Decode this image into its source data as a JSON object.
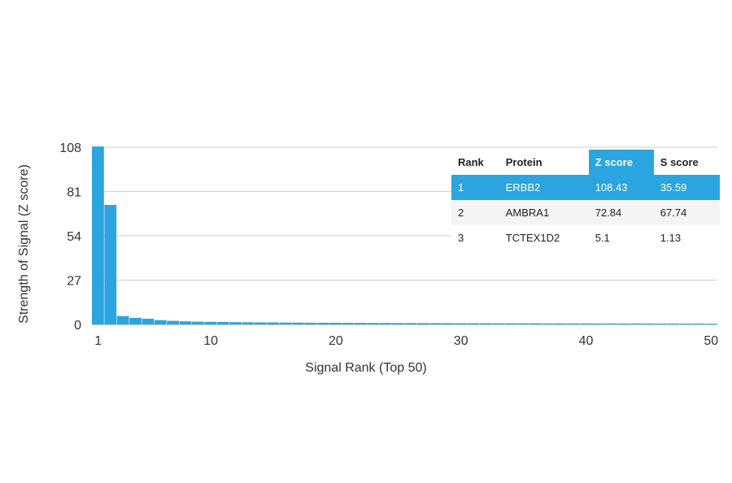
{
  "chart_data": {
    "type": "bar",
    "xlabel": "Signal Rank (Top 50)",
    "ylabel": "Strength of Signal (Z score)",
    "ylim": [
      0,
      108
    ],
    "yticks": [
      0,
      27,
      54,
      81,
      108
    ],
    "xticks": [
      1,
      10,
      20,
      30,
      40,
      50
    ],
    "x": [
      1,
      2,
      3,
      4,
      5,
      6,
      7,
      8,
      9,
      10,
      11,
      12,
      13,
      14,
      15,
      16,
      17,
      18,
      19,
      20,
      21,
      22,
      23,
      24,
      25,
      26,
      27,
      28,
      29,
      30,
      31,
      32,
      33,
      34,
      35,
      36,
      37,
      38,
      39,
      40,
      41,
      42,
      43,
      44,
      45,
      46,
      47,
      48,
      49,
      50
    ],
    "values": [
      108.43,
      72.84,
      5.1,
      4.0,
      3.5,
      2.6,
      2.2,
      1.9,
      1.7,
      1.6,
      1.5,
      1.4,
      1.3,
      1.25,
      1.2,
      1.15,
      1.1,
      1.05,
      1.0,
      1.0,
      0.95,
      0.95,
      0.9,
      0.9,
      0.85,
      0.85,
      0.8,
      0.8,
      0.8,
      0.75,
      0.75,
      0.75,
      0.7,
      0.7,
      0.7,
      0.7,
      0.65,
      0.65,
      0.65,
      0.65,
      0.6,
      0.6,
      0.6,
      0.6,
      0.6,
      0.55,
      0.55,
      0.55,
      0.55,
      0.5
    ],
    "grid": true,
    "bar_color": "#2aa5df",
    "table": {
      "columns": [
        "Rank",
        "Protein",
        "Z score",
        "S score"
      ],
      "rows": [
        [
          "1",
          "ERBB2",
          "108.43",
          "35.59"
        ],
        [
          "2",
          "AMBRA1",
          "72.84",
          "67.74"
        ],
        [
          "3",
          "TCTEX1D2",
          "5.1",
          "1.13"
        ]
      ],
      "highlight_color": "#2aa5df"
    }
  }
}
